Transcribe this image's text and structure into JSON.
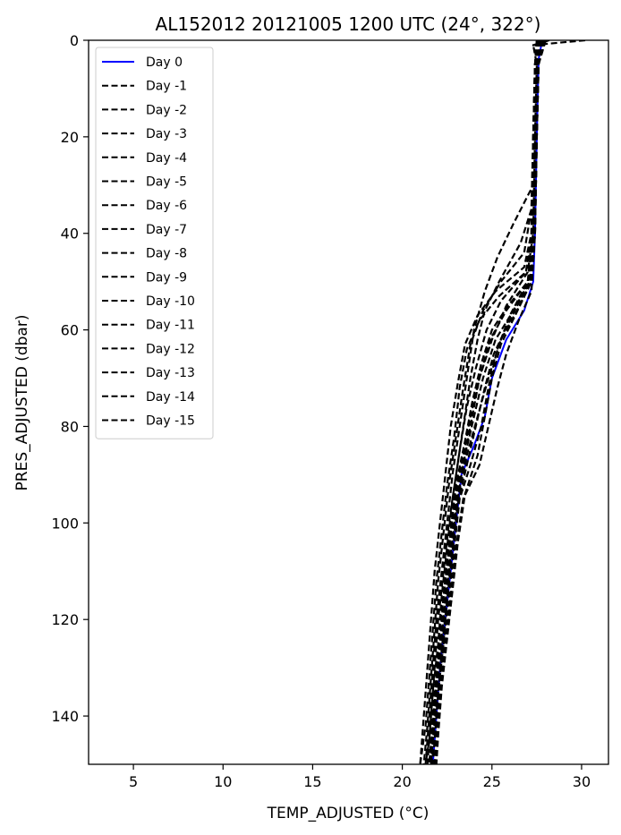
{
  "chart_data": {
    "type": "line",
    "title": "AL152012  20121005 1200 UTC   (24°, 322°)",
    "xlabel": "TEMP_ADJUSTED (°C)",
    "ylabel": "PRES_ADJUSTED (dbar)",
    "xlim": [
      2.5,
      31.5
    ],
    "ylim": [
      150,
      0
    ],
    "y_inverted": true,
    "xticks": [
      5,
      10,
      15,
      20,
      25,
      30
    ],
    "yticks": [
      0,
      20,
      40,
      60,
      80,
      100,
      120,
      140
    ],
    "grid": false,
    "legend_position": "top-left",
    "day0_color": "#0000ff",
    "other_color": "#000000",
    "series": [
      {
        "name": "Day 0",
        "style": "solid",
        "points": [
          [
            27.8,
            0
          ],
          [
            27.6,
            4
          ],
          [
            27.5,
            20
          ],
          [
            27.4,
            40
          ],
          [
            27.3,
            50
          ],
          [
            26.8,
            56
          ],
          [
            25.8,
            62
          ],
          [
            25.0,
            70
          ],
          [
            24.6,
            78
          ],
          [
            24.0,
            84
          ],
          [
            23.3,
            90
          ],
          [
            23.0,
            100
          ],
          [
            22.7,
            110
          ],
          [
            22.4,
            120
          ],
          [
            22.1,
            130
          ],
          [
            21.9,
            140
          ],
          [
            21.7,
            150
          ]
        ]
      },
      {
        "name": "Day -1",
        "style": "dashed",
        "points": [
          [
            30.2,
            0
          ],
          [
            27.3,
            1
          ],
          [
            27.6,
            5
          ],
          [
            27.5,
            20
          ],
          [
            27.4,
            40
          ],
          [
            27.2,
            50
          ],
          [
            26.4,
            56
          ],
          [
            25.5,
            62
          ],
          [
            24.8,
            70
          ],
          [
            24.2,
            78
          ],
          [
            23.6,
            86
          ],
          [
            23.1,
            95
          ],
          [
            22.8,
            105
          ],
          [
            22.5,
            115
          ],
          [
            22.3,
            125
          ],
          [
            22.0,
            135
          ],
          [
            21.7,
            145
          ],
          [
            21.6,
            150
          ]
        ]
      },
      {
        "name": "Day -2",
        "style": "dashed",
        "points": [
          [
            28.2,
            0
          ],
          [
            27.3,
            1
          ],
          [
            27.5,
            5
          ],
          [
            27.4,
            20
          ],
          [
            27.3,
            40
          ],
          [
            27.0,
            48
          ],
          [
            25.8,
            55
          ],
          [
            25.0,
            62
          ],
          [
            24.3,
            70
          ],
          [
            23.8,
            80
          ],
          [
            23.3,
            90
          ],
          [
            22.9,
            100
          ],
          [
            22.6,
            110
          ],
          [
            22.3,
            120
          ],
          [
            22.0,
            130
          ],
          [
            21.8,
            140
          ],
          [
            21.6,
            150
          ]
        ]
      },
      {
        "name": "Day -3",
        "style": "dashed",
        "points": [
          [
            27.5,
            0
          ],
          [
            27.4,
            5
          ],
          [
            27.3,
            20
          ],
          [
            27.2,
            35
          ],
          [
            26.6,
            42
          ],
          [
            25.4,
            50
          ],
          [
            24.6,
            56
          ],
          [
            24.2,
            62
          ],
          [
            23.8,
            70
          ],
          [
            23.4,
            80
          ],
          [
            23.0,
            90
          ],
          [
            22.6,
            100
          ],
          [
            22.3,
            110
          ],
          [
            22.0,
            120
          ],
          [
            21.8,
            130
          ],
          [
            21.6,
            140
          ],
          [
            21.4,
            150
          ]
        ]
      },
      {
        "name": "Day -4",
        "style": "dashed",
        "points": [
          [
            27.6,
            0
          ],
          [
            27.5,
            5
          ],
          [
            27.4,
            20
          ],
          [
            27.3,
            30
          ],
          [
            26.2,
            38
          ],
          [
            25.3,
            45
          ],
          [
            24.6,
            52
          ],
          [
            24.0,
            60
          ],
          [
            23.6,
            70
          ],
          [
            23.2,
            80
          ],
          [
            22.8,
            90
          ],
          [
            22.5,
            100
          ],
          [
            22.2,
            110
          ],
          [
            21.9,
            120
          ],
          [
            21.7,
            130
          ],
          [
            21.5,
            140
          ],
          [
            21.3,
            150
          ]
        ]
      },
      {
        "name": "Day -5",
        "style": "dashed",
        "points": [
          [
            27.7,
            0
          ],
          [
            27.5,
            5
          ],
          [
            27.4,
            20
          ],
          [
            27.3,
            40
          ],
          [
            27.0,
            50
          ],
          [
            26.0,
            57
          ],
          [
            25.3,
            64
          ],
          [
            24.8,
            72
          ],
          [
            24.4,
            80
          ],
          [
            23.8,
            88
          ],
          [
            23.2,
            95
          ],
          [
            22.9,
            105
          ],
          [
            22.6,
            115
          ],
          [
            22.3,
            125
          ],
          [
            22.0,
            135
          ],
          [
            21.8,
            145
          ],
          [
            21.7,
            150
          ]
        ]
      },
      {
        "name": "Day -6",
        "style": "dashed",
        "points": [
          [
            27.9,
            0
          ],
          [
            27.6,
            5
          ],
          [
            27.5,
            20
          ],
          [
            27.4,
            40
          ],
          [
            27.2,
            52
          ],
          [
            26.5,
            58
          ],
          [
            25.8,
            65
          ],
          [
            25.3,
            72
          ],
          [
            24.8,
            80
          ],
          [
            24.3,
            88
          ],
          [
            23.4,
            95
          ],
          [
            23.0,
            105
          ],
          [
            22.7,
            115
          ],
          [
            22.4,
            125
          ],
          [
            22.1,
            135
          ],
          [
            21.9,
            145
          ],
          [
            21.8,
            150
          ]
        ]
      },
      {
        "name": "Day -7",
        "style": "dashed",
        "points": [
          [
            28.0,
            0
          ],
          [
            27.6,
            5
          ],
          [
            27.5,
            20
          ],
          [
            27.4,
            40
          ],
          [
            27.1,
            50
          ],
          [
            26.2,
            56
          ],
          [
            25.2,
            62
          ],
          [
            24.5,
            70
          ],
          [
            24.0,
            78
          ],
          [
            23.5,
            86
          ],
          [
            23.0,
            95
          ],
          [
            22.7,
            105
          ],
          [
            22.4,
            115
          ],
          [
            22.2,
            125
          ],
          [
            21.9,
            135
          ],
          [
            21.7,
            145
          ],
          [
            21.5,
            150
          ]
        ]
      },
      {
        "name": "Day -8",
        "style": "dashed",
        "points": [
          [
            27.8,
            0
          ],
          [
            27.5,
            5
          ],
          [
            27.4,
            20
          ],
          [
            27.3,
            40
          ],
          [
            26.9,
            48
          ],
          [
            25.5,
            54
          ],
          [
            24.7,
            60
          ],
          [
            24.1,
            68
          ],
          [
            23.6,
            76
          ],
          [
            23.2,
            85
          ],
          [
            22.8,
            95
          ],
          [
            22.5,
            105
          ],
          [
            22.2,
            115
          ],
          [
            22.0,
            125
          ],
          [
            21.7,
            135
          ],
          [
            21.5,
            145
          ],
          [
            21.3,
            150
          ]
        ]
      },
      {
        "name": "Day -9",
        "style": "dashed",
        "points": [
          [
            27.6,
            0
          ],
          [
            27.4,
            5
          ],
          [
            27.3,
            20
          ],
          [
            27.2,
            35
          ],
          [
            26.8,
            44
          ],
          [
            25.5,
            50
          ],
          [
            24.5,
            56
          ],
          [
            23.8,
            63
          ],
          [
            23.4,
            72
          ],
          [
            23.0,
            82
          ],
          [
            22.6,
            92
          ],
          [
            22.3,
            102
          ],
          [
            22.0,
            112
          ],
          [
            21.8,
            122
          ],
          [
            21.6,
            132
          ],
          [
            21.4,
            142
          ],
          [
            21.2,
            150
          ]
        ]
      },
      {
        "name": "Day -10",
        "style": "dashed",
        "points": [
          [
            27.7,
            0
          ],
          [
            27.5,
            5
          ],
          [
            27.4,
            20
          ],
          [
            27.3,
            40
          ],
          [
            27.0,
            50
          ],
          [
            25.8,
            56
          ],
          [
            24.9,
            62
          ],
          [
            24.3,
            70
          ],
          [
            23.8,
            78
          ],
          [
            23.4,
            86
          ],
          [
            22.9,
            95
          ],
          [
            22.6,
            105
          ],
          [
            22.3,
            115
          ],
          [
            22.1,
            125
          ],
          [
            21.8,
            135
          ],
          [
            21.6,
            145
          ],
          [
            21.5,
            150
          ]
        ]
      },
      {
        "name": "Day -11",
        "style": "dashed",
        "points": [
          [
            27.8,
            0
          ],
          [
            27.5,
            5
          ],
          [
            27.4,
            20
          ],
          [
            27.3,
            40
          ],
          [
            27.1,
            50
          ],
          [
            26.0,
            58
          ],
          [
            25.1,
            65
          ],
          [
            24.6,
            72
          ],
          [
            24.1,
            80
          ],
          [
            23.6,
            88
          ],
          [
            23.1,
            96
          ],
          [
            22.8,
            106
          ],
          [
            22.5,
            116
          ],
          [
            22.2,
            126
          ],
          [
            22.0,
            136
          ],
          [
            21.8,
            146
          ],
          [
            21.6,
            150
          ]
        ]
      },
      {
        "name": "Day -12",
        "style": "dashed",
        "points": [
          [
            27.6,
            0
          ],
          [
            27.4,
            5
          ],
          [
            27.3,
            20
          ],
          [
            27.2,
            40
          ],
          [
            26.9,
            48
          ],
          [
            25.4,
            53
          ],
          [
            24.3,
            58
          ],
          [
            23.6,
            64
          ],
          [
            23.2,
            72
          ],
          [
            22.9,
            82
          ],
          [
            22.5,
            92
          ],
          [
            22.2,
            102
          ],
          [
            21.9,
            112
          ],
          [
            21.7,
            122
          ],
          [
            21.5,
            132
          ],
          [
            21.3,
            142
          ],
          [
            21.0,
            150
          ]
        ]
      },
      {
        "name": "Day -13",
        "style": "dashed",
        "points": [
          [
            27.7,
            0
          ],
          [
            27.5,
            5
          ],
          [
            27.4,
            20
          ],
          [
            27.3,
            40
          ],
          [
            27.0,
            50
          ],
          [
            25.9,
            55
          ],
          [
            25.0,
            60
          ],
          [
            24.4,
            67
          ],
          [
            23.9,
            75
          ],
          [
            23.5,
            83
          ],
          [
            23.0,
            92
          ],
          [
            22.7,
            102
          ],
          [
            22.4,
            112
          ],
          [
            22.1,
            122
          ],
          [
            21.9,
            132
          ],
          [
            21.7,
            142
          ],
          [
            21.5,
            150
          ]
        ]
      },
      {
        "name": "Day -14",
        "style": "dashed",
        "points": [
          [
            27.9,
            0
          ],
          [
            27.6,
            5
          ],
          [
            27.5,
            20
          ],
          [
            27.4,
            40
          ],
          [
            27.2,
            50
          ],
          [
            26.3,
            57
          ],
          [
            25.5,
            63
          ],
          [
            25.0,
            70
          ],
          [
            24.6,
            78
          ],
          [
            24.2,
            86
          ],
          [
            23.5,
            94
          ],
          [
            23.1,
            104
          ],
          [
            22.8,
            114
          ],
          [
            22.5,
            124
          ],
          [
            22.2,
            134
          ],
          [
            22.0,
            144
          ],
          [
            21.9,
            150
          ]
        ]
      },
      {
        "name": "Day -15",
        "style": "dashed",
        "points": [
          [
            27.5,
            0
          ],
          [
            27.4,
            5
          ],
          [
            27.3,
            20
          ],
          [
            27.2,
            40
          ],
          [
            26.8,
            47
          ],
          [
            25.2,
            52
          ],
          [
            24.2,
            57
          ],
          [
            23.5,
            63
          ],
          [
            23.1,
            71
          ],
          [
            22.7,
            80
          ],
          [
            22.4,
            90
          ],
          [
            22.1,
            100
          ],
          [
            21.8,
            110
          ],
          [
            21.6,
            120
          ],
          [
            21.4,
            130
          ],
          [
            21.2,
            140
          ],
          [
            21.0,
            150
          ]
        ]
      }
    ]
  }
}
